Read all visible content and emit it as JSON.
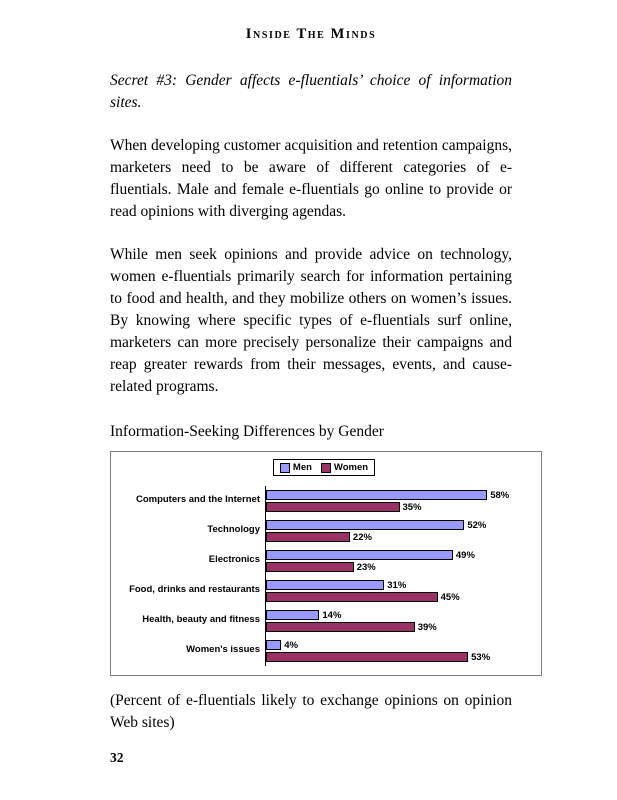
{
  "page": {
    "header_title": "Inside The Minds",
    "page_number": "32"
  },
  "paragraphs": {
    "secret_heading": "Secret #3: Gender affects e-fluentials’ choice of information sites.",
    "p1": "When developing customer acquisition and retention campaigns, marketers need to be aware of different categories of e-fluentials. Male and female e-fluentials go online to provide or read opinions with diverging agendas.",
    "p2": "While men seek opinions and provide advice on technology, women e-fluentials primarily search for information pertaining to food and health, and they mobilize others on women’s issues. By knowing where specific types of e-fluentials surf online, marketers can more precisely personalize their campaigns and reap greater rewards from their messages, events, and cause-related programs.",
    "chart_heading": "Information-Seeking Differences by Gender",
    "caption": "(Percent of e-fluentials likely to exchange opinions on opinion Web sites)"
  },
  "chart_data": {
    "type": "bar",
    "orientation": "horizontal",
    "title": "Information-Seeking Differences by Gender",
    "categories": [
      "Computers and the Internet",
      "Technology",
      "Electronics",
      "Food, drinks and restaurants",
      "Health, beauty and fitness",
      "Women's issues"
    ],
    "series": [
      {
        "name": "Men",
        "color": "#9999FF",
        "values": [
          58,
          52,
          49,
          31,
          14,
          4
        ]
      },
      {
        "name": "Women",
        "color": "#993366",
        "values": [
          35,
          22,
          23,
          45,
          39,
          53
        ]
      }
    ],
    "value_suffix": "%",
    "xlim": [
      0,
      70
    ],
    "legend_position": "top-center",
    "grid": false,
    "bar_border_color": "#000000"
  }
}
